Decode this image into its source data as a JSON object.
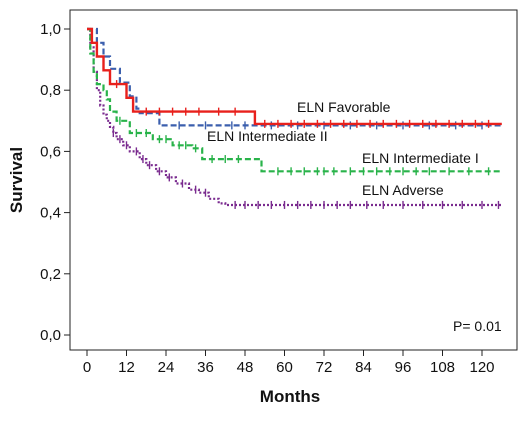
{
  "chart_data": {
    "type": "line",
    "subtype": "kaplan-meier step curves with censor marks",
    "xlabel": "Months",
    "ylabel": "Survival",
    "xlim": [
      0,
      126
    ],
    "ylim": [
      0.0,
      1.0
    ],
    "x_ticks": [
      0,
      12,
      24,
      36,
      48,
      60,
      72,
      84,
      96,
      108,
      120
    ],
    "y_ticks": [
      "0,0",
      "0,2",
      "0,4",
      "0,6",
      "0,8",
      "1,0"
    ],
    "y_tick_values": [
      0.0,
      0.2,
      0.4,
      0.6,
      0.8,
      1.0
    ],
    "grid": false,
    "annotation": "P= 0.01",
    "series": [
      {
        "name": "ELN Favorable",
        "color": "#e8201c",
        "dash": "solid",
        "steps": [
          [
            0,
            1.0
          ],
          [
            1.5,
            0.955
          ],
          [
            3,
            0.91
          ],
          [
            5,
            0.865
          ],
          [
            7,
            0.82
          ],
          [
            12,
            0.775
          ],
          [
            14,
            0.73
          ],
          [
            51,
            0.69
          ],
          [
            126,
            0.69
          ]
        ],
        "censor_x": [
          9,
          18,
          22,
          26,
          30,
          34,
          40,
          45,
          54,
          58,
          62,
          66,
          70,
          74,
          78,
          82,
          86,
          90,
          94,
          98,
          102,
          106,
          110,
          114,
          118,
          122
        ]
      },
      {
        "name": "ELN Intermediate II",
        "color": "#3b5fad",
        "dash": "dashed",
        "steps": [
          [
            0,
            1.0
          ],
          [
            3,
            0.955
          ],
          [
            5,
            0.91
          ],
          [
            7,
            0.87
          ],
          [
            10,
            0.825
          ],
          [
            13,
            0.78
          ],
          [
            15,
            0.74
          ],
          [
            16,
            0.725
          ],
          [
            22,
            0.685
          ],
          [
            126,
            0.685
          ]
        ],
        "censor_x": [
          28,
          36,
          44,
          48,
          56,
          64,
          72,
          80,
          88,
          96,
          104,
          112,
          120
        ]
      },
      {
        "name": "ELN Intermediate I",
        "color": "#29b34a",
        "dash": "dashed",
        "steps": [
          [
            0,
            1.0
          ],
          [
            1,
            0.92
          ],
          [
            2,
            0.86
          ],
          [
            3,
            0.82
          ],
          [
            5,
            0.8
          ],
          [
            6,
            0.77
          ],
          [
            7,
            0.73
          ],
          [
            9,
            0.7
          ],
          [
            13,
            0.66
          ],
          [
            20,
            0.64
          ],
          [
            26,
            0.62
          ],
          [
            32,
            0.61
          ],
          [
            35,
            0.575
          ],
          [
            53,
            0.535
          ],
          [
            126,
            0.535
          ]
        ],
        "censor_x": [
          10,
          15,
          18,
          22,
          24,
          28,
          30,
          33,
          38,
          42,
          46,
          58,
          62,
          66,
          70,
          72,
          75,
          80,
          84,
          88,
          92,
          96,
          100,
          104,
          110,
          116,
          122
        ]
      },
      {
        "name": "ELN  Adverse",
        "color": "#7a2b8f",
        "dash": "dotted",
        "steps": [
          [
            0,
            1.0
          ],
          [
            1,
            0.94
          ],
          [
            2,
            0.86
          ],
          [
            3,
            0.8
          ],
          [
            4,
            0.75
          ],
          [
            5,
            0.72
          ],
          [
            6,
            0.7
          ],
          [
            7,
            0.68
          ],
          [
            8,
            0.66
          ],
          [
            9,
            0.64
          ],
          [
            11,
            0.62
          ],
          [
            13,
            0.6
          ],
          [
            16,
            0.575
          ],
          [
            18,
            0.555
          ],
          [
            21,
            0.535
          ],
          [
            24,
            0.515
          ],
          [
            27,
            0.495
          ],
          [
            31,
            0.475
          ],
          [
            34,
            0.465
          ],
          [
            37,
            0.445
          ],
          [
            40,
            0.43
          ],
          [
            42,
            0.425
          ],
          [
            126,
            0.425
          ]
        ],
        "censor_x": [
          8,
          10,
          12,
          15,
          17,
          19,
          22,
          25,
          29,
          33,
          36,
          45,
          48,
          52,
          56,
          60,
          64,
          68,
          72,
          76,
          80,
          85,
          90,
          96,
          102,
          108,
          114,
          120,
          125
        ]
      }
    ]
  }
}
